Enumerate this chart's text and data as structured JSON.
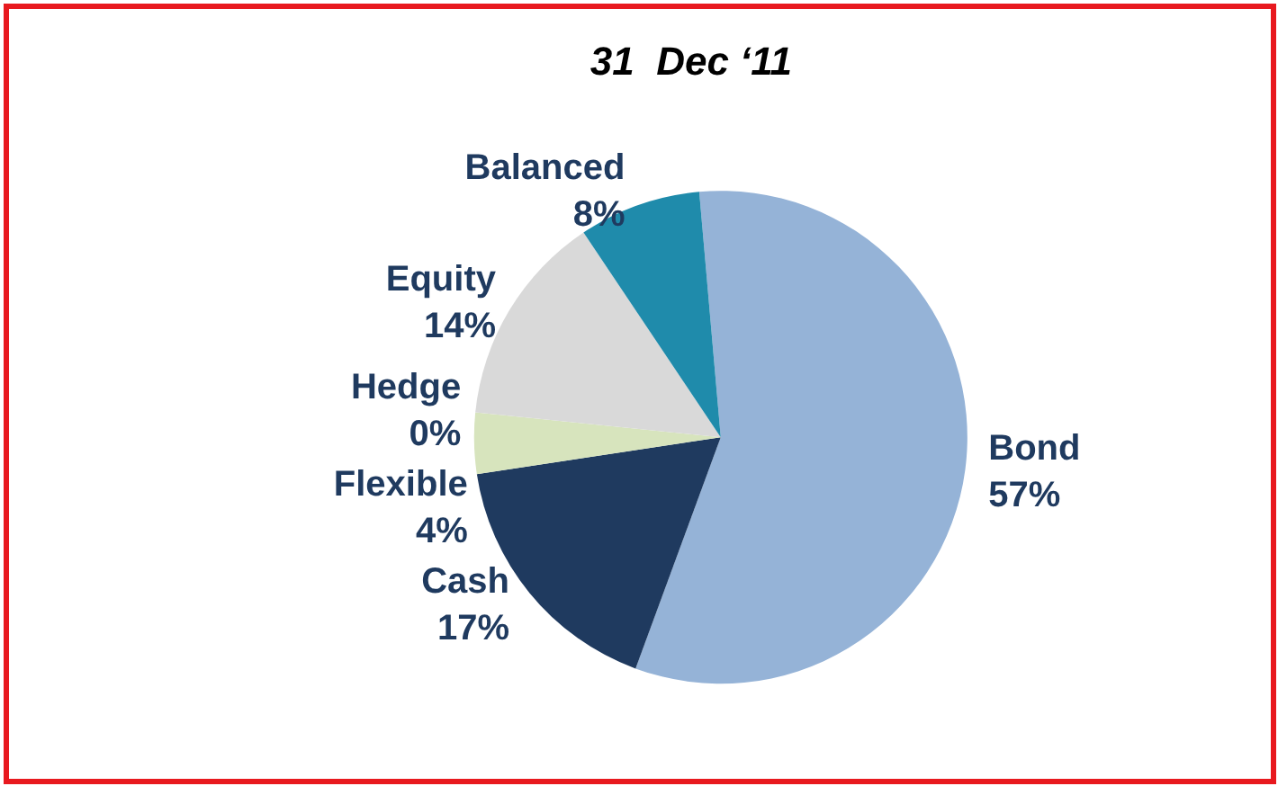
{
  "chart_data": {
    "type": "pie",
    "title": "31  Dec ‘11",
    "categories": [
      "Bond",
      "Cash",
      "Flexible",
      "Hedge",
      "Equity",
      "Balanced"
    ],
    "values": [
      57,
      17,
      4,
      0,
      14,
      8
    ],
    "value_labels": [
      "57%",
      "17%",
      "4%",
      "0%",
      "14%",
      "8%"
    ],
    "colors": [
      "#95b3d7",
      "#1f3a5f",
      "#d7e4bd",
      "#e6908a",
      "#d9d9d9",
      "#1f8bab"
    ],
    "legend": false
  }
}
